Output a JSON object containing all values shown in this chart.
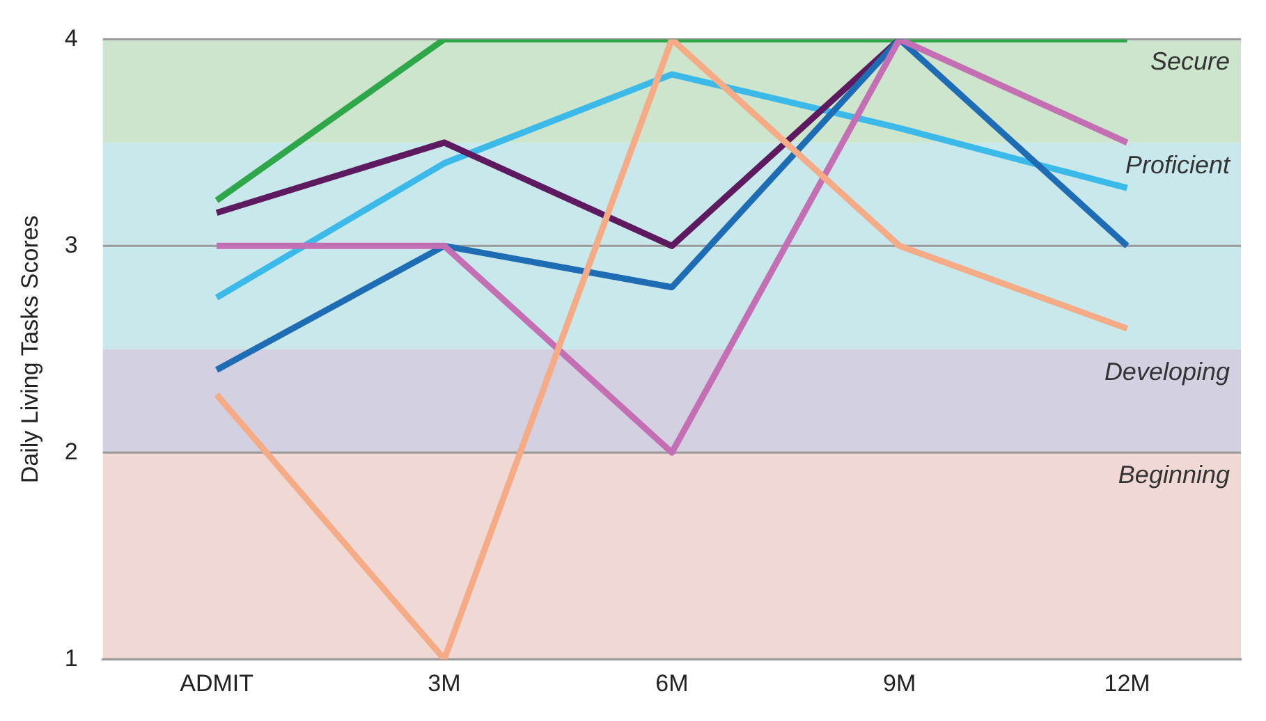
{
  "chart_data": {
    "type": "line",
    "ylabel": "Daily Living Tasks Scores",
    "categories": [
      "ADMIT",
      "3M",
      "6M",
      "9M",
      "12M"
    ],
    "series": [
      {
        "color": "#f4ab86",
        "values": [
          2.28,
          1,
          4,
          3,
          2.6
        ]
      },
      {
        "color": "#c46fb4",
        "values": [
          3,
          3,
          2,
          4,
          3.5
        ]
      },
      {
        "color": "#1e6db4",
        "values": [
          2.4,
          3,
          2.8,
          4,
          3
        ]
      },
      {
        "color": "#5e1a5e",
        "values": [
          3.16,
          3.5,
          3,
          4,
          null
        ]
      },
      {
        "color": "#3bb9e9",
        "values": [
          2.75,
          3.4,
          3.83,
          3.57,
          3.28
        ]
      },
      {
        "color": "#2ea64a",
        "values": [
          3.22,
          4,
          4,
          4,
          4
        ]
      }
    ],
    "ylim": [
      1,
      4
    ],
    "yticks": [
      1,
      2,
      3,
      4
    ],
    "grid": "y",
    "legend": false,
    "marker": "none",
    "line_style": "solid",
    "bands": [
      {
        "axis": "y",
        "from": 1,
        "to": 2,
        "label": "Beginning",
        "color": "#f0d9d4"
      },
      {
        "axis": "y",
        "from": 2,
        "to": 2.5,
        "label": "Developing",
        "color": "#d3d0e1"
      },
      {
        "axis": "y",
        "from": 2.5,
        "to": 3.5,
        "label": "Proficient",
        "color": "#c8e8ec"
      },
      {
        "axis": "y",
        "from": 3.5,
        "to": 4,
        "label": "Secure",
        "color": "#cde5cd"
      }
    ]
  }
}
